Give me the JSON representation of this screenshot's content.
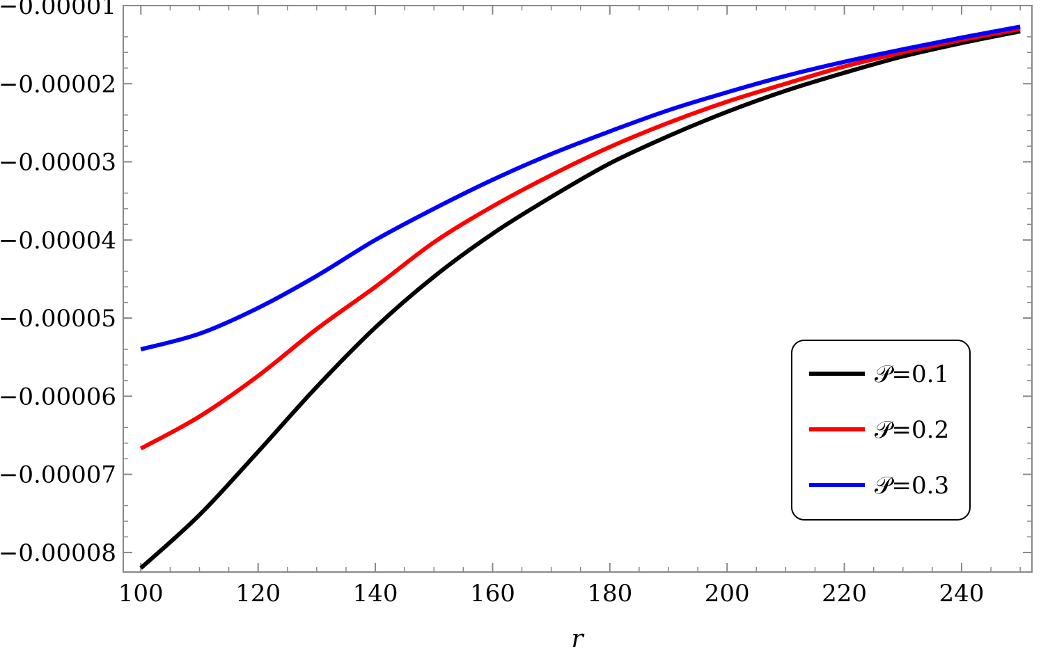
{
  "chart_data": {
    "type": "line",
    "title": "",
    "xlabel": "r",
    "ylabel": "",
    "xlim": [
      97,
      252
    ],
    "ylim": [
      -8.25e-05,
      -1e-05
    ],
    "x_ticks": [
      100,
      120,
      140,
      160,
      180,
      200,
      220,
      240
    ],
    "x_tick_labels": [
      "100",
      "120",
      "140",
      "160",
      "180",
      "200",
      "220",
      "240"
    ],
    "y_ticks": [
      -1e-05,
      -2e-05,
      -3e-05,
      -4e-05,
      -5e-05,
      -6e-05,
      -7e-05,
      -8e-05
    ],
    "y_tick_labels": [
      "−0.00001",
      "−0.00002",
      "−0.00003",
      "−0.00004",
      "−0.00005",
      "−0.00006",
      "−0.00007",
      "−0.00008"
    ],
    "grid": false,
    "legend_position": "bottom-right",
    "x": [
      100,
      110,
      120,
      130,
      140,
      150,
      160,
      170,
      180,
      190,
      200,
      210,
      220,
      230,
      240,
      250
    ],
    "series": [
      {
        "name": "𝒫=0.1",
        "color": "#000000",
        "values": [
          -8.2e-05,
          -7.52e-05,
          -6.71e-05,
          -5.88e-05,
          -5.12e-05,
          -4.47e-05,
          -3.92e-05,
          -3.45e-05,
          -3.02e-05,
          -2.67e-05,
          -2.36e-05,
          -2.09e-05,
          -1.86e-05,
          -1.65e-05,
          -1.48e-05,
          -1.33e-05
        ]
      },
      {
        "name": "𝒫=0.2",
        "color": "#ff0000",
        "values": [
          -6.67e-05,
          -6.26e-05,
          -5.74e-05,
          -5.14e-05,
          -4.6e-05,
          -4.03e-05,
          -3.57e-05,
          -3.17e-05,
          -2.81e-05,
          -2.5e-05,
          -2.23e-05,
          -2e-05,
          -1.78e-05,
          -1.6e-05,
          -1.44e-05,
          -1.3e-05
        ]
      },
      {
        "name": "𝒫=0.3",
        "color": "#0000ff",
        "values": [
          -5.4e-05,
          -5.2e-05,
          -4.87e-05,
          -4.46e-05,
          -4e-05,
          -3.6e-05,
          -3.23e-05,
          -2.9e-05,
          -2.61e-05,
          -2.34e-05,
          -2.11e-05,
          -1.9e-05,
          -1.72e-05,
          -1.56e-05,
          -1.41e-05,
          -1.27e-05
        ]
      }
    ]
  }
}
